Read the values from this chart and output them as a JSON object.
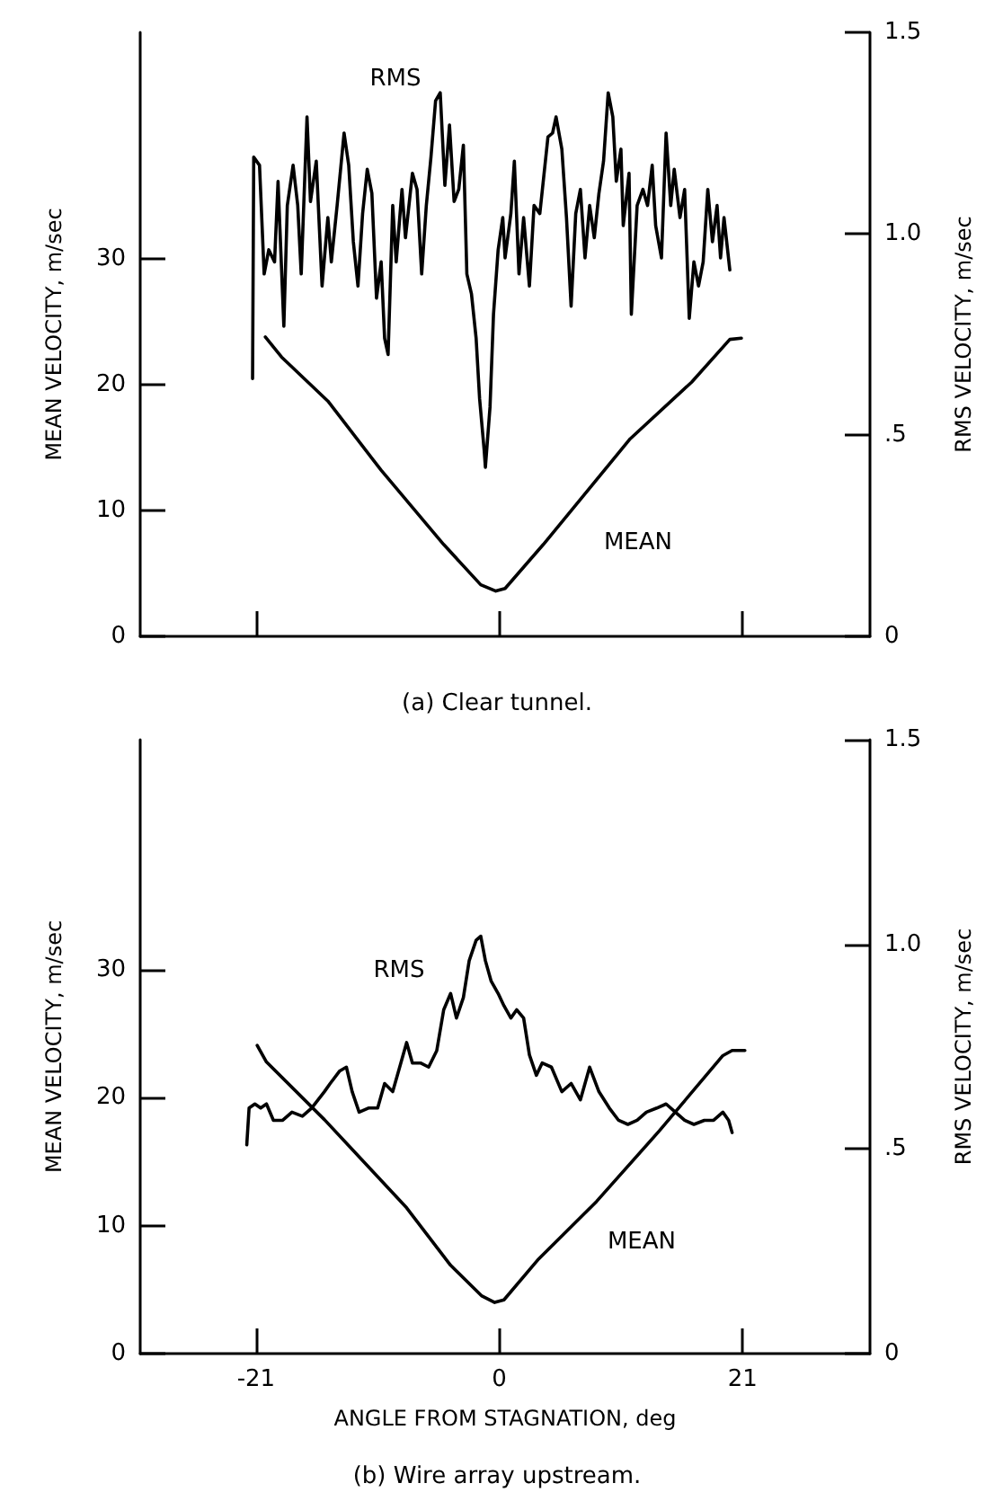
{
  "chart_data": [
    {
      "type": "line",
      "title": "(a) Clear tunnel.",
      "ylabel": "MEAN VELOCITY, m/sec",
      "y2label": "RMS VELOCITY, m/sec",
      "xlim": [
        -31,
        32
      ],
      "xticks": [
        -21,
        0,
        21
      ],
      "tick_labels": "y",
      "ylim": [
        0,
        48
      ],
      "yticks": [
        0,
        10,
        20,
        30
      ],
      "y2lim": [
        0,
        1.5
      ],
      "y2ticks": [
        0,
        {
          "value": 0.5,
          "label": ".5"
        },
        {
          "value": 1,
          "label": "1.0"
        },
        {
          "value": 1.5,
          "label": "1.5"
        }
      ],
      "grid": false,
      "marker": "none",
      "line_style": "solid",
      "annotations": [
        "RMS",
        "MEAN"
      ],
      "series": [
        {
          "color": "#000000",
          "axis": "y2",
          "x": [
            -21.3,
            -21.2,
            -20.7,
            -20.3,
            -19.9,
            -19.4,
            -19.1,
            -18.6,
            -18.3,
            -17.8,
            -17.4,
            -17.1,
            -16.6,
            -16.3,
            -15.8,
            -15.3,
            -14.8,
            -14.5,
            -14.0,
            -13.4,
            -13.0,
            -12.6,
            -12.2,
            -11.8,
            -11.4,
            -11.0,
            -10.6,
            -10.2,
            -9.9,
            -9.6,
            -9.2,
            -8.9,
            -8.4,
            -8.1,
            -7.5,
            -7.1,
            -6.7,
            -6.3,
            -5.9,
            -5.5,
            -5.1,
            -4.7,
            -4.3,
            -3.9,
            -3.5,
            -3.1,
            -2.8,
            -2.4,
            -2.0,
            -1.7,
            -1.3,
            -1.2,
            -0.8,
            -0.5,
            -0.1,
            0.3,
            0.5,
            1.0,
            1.3,
            1.7,
            2.1,
            2.6,
            3.0,
            3.5,
            4.2,
            4.6,
            4.9,
            5.4,
            5.8,
            6.2,
            6.6,
            7.0,
            7.4,
            7.8,
            8.2,
            8.6,
            9.0,
            9.4,
            9.8,
            10.1,
            10.5,
            10.7,
            11.2,
            11.4,
            11.9,
            12.4,
            12.8,
            13.2,
            13.5,
            14.0,
            14.4,
            14.8,
            15.1,
            15.6,
            16.0,
            16.4,
            16.8,
            17.2,
            17.6,
            18.0,
            18.4,
            18.8,
            19.1,
            19.4,
            19.9
          ],
          "values": [
            0.64,
            1.19,
            1.17,
            0.9,
            0.96,
            0.93,
            1.13,
            0.77,
            1.07,
            1.17,
            1.07,
            0.9,
            1.29,
            1.08,
            1.18,
            0.87,
            1.04,
            0.93,
            1.07,
            1.25,
            1.17,
            0.98,
            0.87,
            1.05,
            1.16,
            1.1,
            0.84,
            0.93,
            0.74,
            0.7,
            1.07,
            0.93,
            1.11,
            0.99,
            1.15,
            1.11,
            0.9,
            1.07,
            1.19,
            1.33,
            1.35,
            1.12,
            1.27,
            1.08,
            1.11,
            1.22,
            0.9,
            0.85,
            0.74,
            0.59,
            0.46,
            0.42,
            0.57,
            0.8,
            0.96,
            1.04,
            0.94,
            1.05,
            1.18,
            0.9,
            1.04,
            0.87,
            1.07,
            1.05,
            1.24,
            1.25,
            1.29,
            1.21,
            1.04,
            0.82,
            1.05,
            1.11,
            0.94,
            1.07,
            0.99,
            1.1,
            1.18,
            1.35,
            1.29,
            1.13,
            1.21,
            1.02,
            1.15,
            0.8,
            1.07,
            1.11,
            1.07,
            1.17,
            1.02,
            0.94,
            1.25,
            1.07,
            1.16,
            1.04,
            1.11,
            0.79,
            0.93,
            0.87,
            0.93,
            1.11,
            0.98,
            1.07,
            0.94,
            1.04,
            0.91
          ]
        },
        {
          "color": "#000000",
          "x": [
            -20.2,
            -18.8,
            -14.8,
            -10.2,
            -4.8,
            -1.6,
            -0.3,
            0.5,
            3.8,
            11.3,
            16.6,
            19.9,
            20.9
          ],
          "values": [
            23.8,
            22.2,
            18.7,
            13.2,
            7.3,
            4.1,
            3.6,
            3.8,
            7.3,
            15.7,
            20.2,
            23.6,
            23.7
          ]
        }
      ]
    },
    {
      "type": "line",
      "title": "(b) Wire array upstream.",
      "xlabel": "ANGLE FROM STAGNATION, deg",
      "ylabel": "MEAN VELOCITY, m/sec",
      "y2label": "RMS VELOCITY, m/sec",
      "xlim": [
        -31,
        32
      ],
      "xticks": [
        -21,
        0,
        21
      ],
      "ylim": [
        0,
        48
      ],
      "yticks": [
        0,
        10,
        20,
        30
      ],
      "y2lim": [
        0,
        1.5
      ],
      "y2ticks": [
        0,
        {
          "value": 0.5,
          "label": ".5"
        },
        {
          "value": 1,
          "label": "1.0"
        },
        {
          "value": 1.5,
          "label": "1.5"
        }
      ],
      "grid": false,
      "marker": "none",
      "line_style": "solid",
      "annotations": [
        "RMS",
        "MEAN"
      ],
      "series": [
        {
          "color": "#000000",
          "axis": "y2",
          "x": [
            -21.8,
            -21.6,
            -21.1,
            -20.6,
            -20.1,
            -19.5,
            -18.7,
            -17.9,
            -17.0,
            -16.2,
            -15.1,
            -14.6,
            -13.8,
            -13.2,
            -12.7,
            -12.1,
            -11.3,
            -10.5,
            -9.9,
            -9.2,
            -8.5,
            -8.0,
            -7.5,
            -6.8,
            -6.1,
            -5.4,
            -4.8,
            -4.2,
            -3.7,
            -3.1,
            -2.6,
            -2.0,
            -1.6,
            -1.2,
            -0.7,
            -0.1,
            0.4,
            1.0,
            1.5,
            2.1,
            2.6,
            3.2,
            3.7,
            4.5,
            5.4,
            6.2,
            7.0,
            7.8,
            8.6,
            9.5,
            10.3,
            11.1,
            11.9,
            12.7,
            13.6,
            14.4,
            15.2,
            16.0,
            16.8,
            17.7,
            18.5,
            19.3,
            19.8,
            20.1
          ],
          "values": [
            0.51,
            0.6,
            0.61,
            0.6,
            0.61,
            0.57,
            0.57,
            0.59,
            0.58,
            0.6,
            0.64,
            0.66,
            0.69,
            0.7,
            0.64,
            0.59,
            0.6,
            0.6,
            0.66,
            0.64,
            0.71,
            0.76,
            0.71,
            0.71,
            0.7,
            0.74,
            0.84,
            0.88,
            0.82,
            0.87,
            0.96,
            1.01,
            1.02,
            0.96,
            0.91,
            0.88,
            0.85,
            0.82,
            0.84,
            0.82,
            0.73,
            0.68,
            0.71,
            0.7,
            0.64,
            0.66,
            0.62,
            0.7,
            0.64,
            0.6,
            0.57,
            0.56,
            0.57,
            0.59,
            0.6,
            0.61,
            0.59,
            0.57,
            0.56,
            0.57,
            0.57,
            0.59,
            0.57,
            0.54
          ]
        },
        {
          "color": "#000000",
          "x": [
            -20.9,
            -20.1,
            -15.1,
            -8.0,
            -4.2,
            -1.5,
            -0.4,
            0.4,
            3.4,
            8.4,
            13.8,
            19.3,
            20.1,
            21.2
          ],
          "values": [
            24.1,
            22.8,
            18.3,
            11.4,
            6.9,
            4.5,
            4.0,
            4.2,
            7.4,
            11.9,
            17.4,
            23.3,
            23.7,
            23.7
          ]
        }
      ]
    }
  ]
}
